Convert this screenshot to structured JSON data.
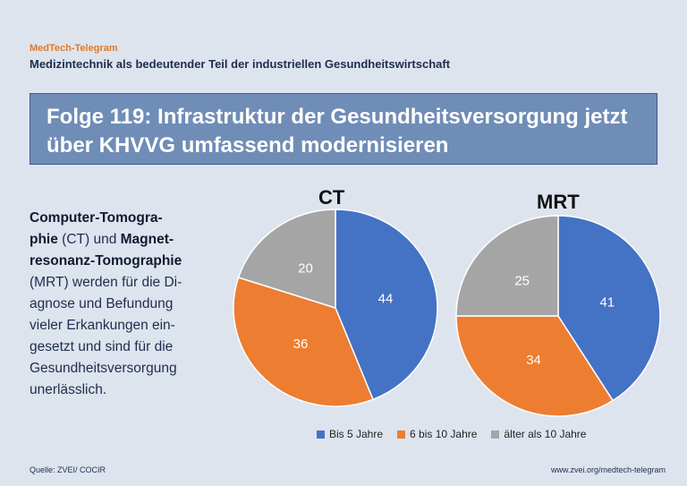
{
  "header": {
    "brand": "MedTech-Telegram",
    "subtitle": "Medizintechnik als bedeutender Teil der industriellen Gesundheitswirtschaft"
  },
  "title": {
    "prefix": "Folge 119:",
    "line1_rest": "Infrastruktur der Gesundheitsversorgung jetzt",
    "line2": "über KHVVG umfassend modernisieren"
  },
  "intro": {
    "line1_bold": "Computer-Tomogra-",
    "line2_bold": "phie",
    "line2_rest": " (CT) und ",
    "line2_bold2": "Magnet-",
    "line3_bold": "resonanz-Tomographie",
    "line4": "(MRT) werden für die Di-",
    "line5": "agnose und Befundung",
    "line6": "vieler Erkankungen ein-",
    "line7": "gesetzt und sind für die",
    "line8": "Gesundheitsversorgung",
    "line9": "unerlässlich."
  },
  "colors": {
    "blue": "#4472c4",
    "orange": "#ed7d31",
    "gray": "#a5a5a5"
  },
  "chart_data": [
    {
      "type": "pie",
      "title": "CT",
      "categories": [
        "Bis 5 Jahre",
        "6 bis 10 Jahre",
        "älter als 10 Jahre"
      ],
      "values": [
        44,
        36,
        20
      ]
    },
    {
      "type": "pie",
      "title": "MRT",
      "categories": [
        "Bis 5 Jahre",
        "6 bis 10 Jahre",
        "älter als 10 Jahre"
      ],
      "values": [
        41,
        34,
        25
      ]
    }
  ],
  "legend": {
    "items": [
      "Bis 5 Jahre",
      "6 bis 10 Jahre",
      "älter als 10 Jahre"
    ],
    "placement": "bottom"
  },
  "footer": {
    "source": "Quelle: ZVEI/ COCIR",
    "url": "www.zvei.org/medtech-telegram"
  }
}
